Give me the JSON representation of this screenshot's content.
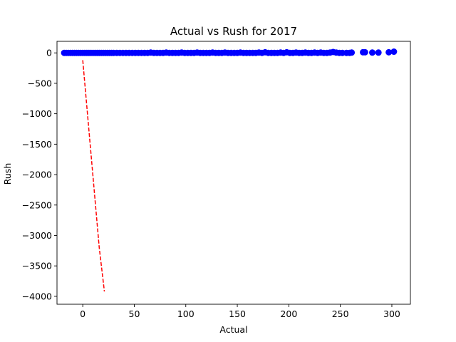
{
  "chart_data": {
    "type": "scatter",
    "title": "Actual vs Rush for 2017",
    "xlabel": "Actual",
    "ylabel": "Rush",
    "xlim": [
      -25,
      318
    ],
    "ylim": [
      -4130,
      190
    ],
    "xticks": [
      0,
      50,
      100,
      150,
      200,
      250,
      300
    ],
    "yticks": [
      0,
      -500,
      -1000,
      -1500,
      -2000,
      -2500,
      -3000,
      -3500,
      -4000
    ],
    "xtick_labels": [
      "0",
      "50",
      "100",
      "150",
      "200",
      "250",
      "300"
    ],
    "ytick_labels": [
      "0",
      "−500",
      "−1000",
      "−1500",
      "−2000",
      "−2500",
      "−3000",
      "−3500",
      "−4000"
    ],
    "grid": false,
    "legend": "none",
    "series": [
      {
        "kind": "scatter",
        "color": "#0000ff",
        "points": [
          [
            -18,
            0
          ],
          [
            -16,
            0
          ],
          [
            -14,
            0
          ],
          [
            -12,
            0
          ],
          [
            -10,
            0
          ],
          [
            -8,
            0
          ],
          [
            -6,
            0
          ],
          [
            -4,
            0
          ],
          [
            -2,
            0
          ],
          [
            0,
            0
          ],
          [
            2,
            0
          ],
          [
            4,
            0
          ],
          [
            6,
            0
          ],
          [
            8,
            0
          ],
          [
            10,
            0
          ],
          [
            12,
            0
          ],
          [
            14,
            0
          ],
          [
            16,
            0
          ],
          [
            18,
            0
          ],
          [
            20,
            0
          ],
          [
            22,
            0
          ],
          [
            24,
            0
          ],
          [
            26,
            0
          ],
          [
            28,
            0
          ],
          [
            30,
            0
          ],
          [
            33,
            0
          ],
          [
            36,
            0
          ],
          [
            39,
            0
          ],
          [
            42,
            0
          ],
          [
            45,
            0
          ],
          [
            48,
            0
          ],
          [
            51,
            0
          ],
          [
            54,
            0
          ],
          [
            57,
            0
          ],
          [
            60,
            0
          ],
          [
            63,
            0
          ],
          [
            66,
            5
          ],
          [
            69,
            0
          ],
          [
            72,
            0
          ],
          [
            75,
            0
          ],
          [
            78,
            0
          ],
          [
            81,
            5
          ],
          [
            84,
            0
          ],
          [
            87,
            0
          ],
          [
            90,
            0
          ],
          [
            93,
            0
          ],
          [
            96,
            5
          ],
          [
            99,
            0
          ],
          [
            102,
            0
          ],
          [
            105,
            0
          ],
          [
            108,
            0
          ],
          [
            111,
            5
          ],
          [
            114,
            0
          ],
          [
            117,
            0
          ],
          [
            120,
            0
          ],
          [
            123,
            0
          ],
          [
            126,
            5
          ],
          [
            129,
            0
          ],
          [
            132,
            0
          ],
          [
            135,
            0
          ],
          [
            138,
            5
          ],
          [
            141,
            0
          ],
          [
            144,
            0
          ],
          [
            147,
            0
          ],
          [
            150,
            0
          ],
          [
            153,
            5
          ],
          [
            156,
            0
          ],
          [
            159,
            0
          ],
          [
            162,
            0
          ],
          [
            165,
            0
          ],
          [
            168,
            0
          ],
          [
            171,
            5
          ],
          [
            174,
            0
          ],
          [
            177,
            10
          ],
          [
            180,
            0
          ],
          [
            183,
            0
          ],
          [
            186,
            0
          ],
          [
            189,
            0
          ],
          [
            192,
            5
          ],
          [
            195,
            0
          ],
          [
            198,
            10
          ],
          [
            201,
            0
          ],
          [
            204,
            0
          ],
          [
            207,
            5
          ],
          [
            210,
            0
          ],
          [
            213,
            0
          ],
          [
            216,
            5
          ],
          [
            219,
            0
          ],
          [
            222,
            0
          ],
          [
            225,
            5
          ],
          [
            228,
            0
          ],
          [
            231,
            5
          ],
          [
            234,
            0
          ],
          [
            237,
            0
          ],
          [
            240,
            5
          ],
          [
            243,
            15
          ],
          [
            246,
            5
          ],
          [
            249,
            0
          ],
          [
            252,
            0
          ],
          [
            256,
            0
          ],
          [
            259,
            0
          ],
          [
            261,
            5
          ],
          [
            272,
            10
          ],
          [
            274,
            10
          ],
          [
            281,
            5
          ],
          [
            287,
            5
          ],
          [
            297,
            10
          ],
          [
            302,
            20
          ]
        ]
      },
      {
        "kind": "line",
        "style": "dashed",
        "color": "#ff0000",
        "points": [
          [
            0,
            -120
          ],
          [
            16,
            -3200
          ],
          [
            21,
            -3920
          ]
        ]
      }
    ]
  }
}
